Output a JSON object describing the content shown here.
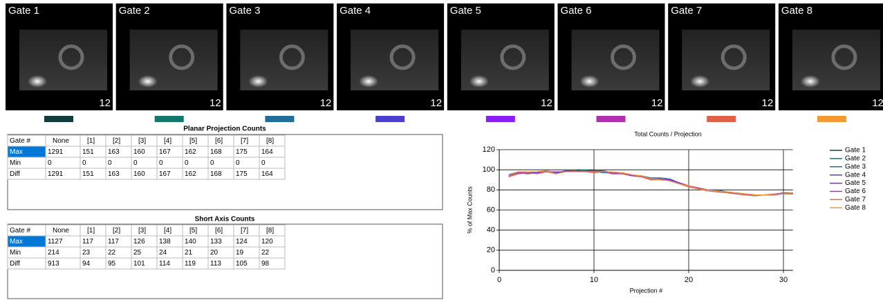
{
  "gates": [
    {
      "label": "Gate 1",
      "number": 12,
      "color": "#0f3d3d"
    },
    {
      "label": "Gate 2",
      "number": 12,
      "color": "#12786c"
    },
    {
      "label": "Gate 3",
      "number": 12,
      "color": "#1f6f98"
    },
    {
      "label": "Gate 4",
      "number": 12,
      "color": "#4b3fcf"
    },
    {
      "label": "Gate 5",
      "number": 12,
      "color": "#8a1ef5"
    },
    {
      "label": "Gate 6",
      "number": 12,
      "color": "#b030b0"
    },
    {
      "label": "Gate 7",
      "number": 12,
      "color": "#e0604a"
    },
    {
      "label": "Gate 8",
      "number": 12,
      "color": "#f59a30"
    }
  ],
  "planar_table": {
    "title": "Planar Projection Counts",
    "header": [
      "Gate #",
      "None",
      "[1]",
      "[2]",
      "[3]",
      "[4]",
      "[5]",
      "[6]",
      "[7]",
      "[8]"
    ],
    "rows": [
      [
        "Max",
        1291,
        151,
        163,
        160,
        167,
        162,
        168,
        175,
        164
      ],
      [
        "Min",
        0,
        0,
        0,
        0,
        0,
        0,
        0,
        0,
        0
      ],
      [
        "Diff",
        1291,
        151,
        163,
        160,
        167,
        162,
        168,
        175,
        164
      ]
    ]
  },
  "short_axis_table": {
    "title": "Short Axis Counts",
    "header": [
      "Gate #",
      "None",
      "[1]",
      "[2]",
      "[3]",
      "[4]",
      "[5]",
      "[6]",
      "[7]",
      "[8]"
    ],
    "rows": [
      [
        "Max",
        1127,
        117,
        117,
        126,
        138,
        140,
        133,
        124,
        120
      ],
      [
        "Min",
        214,
        23,
        22,
        25,
        24,
        21,
        20,
        19,
        22
      ],
      [
        "Diff",
        913,
        94,
        95,
        101,
        114,
        119,
        113,
        105,
        98
      ]
    ]
  },
  "chart_data": {
    "type": "line",
    "title": "Total Counts / Projection",
    "x_label": "Projection #",
    "y_label": "% of Max Counts",
    "x": [
      1,
      2,
      3,
      4,
      5,
      6,
      7,
      8,
      9,
      10,
      11,
      12,
      13,
      14,
      15,
      16,
      17,
      18,
      19,
      20,
      21,
      22,
      23,
      24,
      25,
      26,
      27,
      28,
      29,
      30,
      31
    ],
    "xlim": [
      0,
      31
    ],
    "xticks": [
      0,
      10,
      20,
      30
    ],
    "ylim": [
      0,
      120
    ],
    "yticks": [
      0,
      20,
      40,
      60,
      80,
      100,
      120
    ],
    "grid": true,
    "legend": "right",
    "series": [
      {
        "name": "Gate 1",
        "color": "#0f3d3d",
        "values": [
          94,
          96,
          97,
          98,
          99,
          97,
          98,
          99,
          99,
          99,
          98,
          97,
          96,
          95,
          94,
          91,
          91,
          90,
          87,
          84,
          82,
          80,
          80,
          78,
          77,
          76,
          75,
          75,
          76,
          76,
          77
        ]
      },
      {
        "name": "Gate 2",
        "color": "#12786c",
        "values": [
          93,
          97,
          98,
          97,
          98,
          96,
          98,
          99,
          100,
          99,
          98,
          96,
          97,
          95,
          93,
          91,
          90,
          89,
          86,
          84,
          81,
          80,
          79,
          78,
          77,
          76,
          75,
          75,
          76,
          76,
          76
        ]
      },
      {
        "name": "Gate 3",
        "color": "#1f6f98",
        "values": [
          94,
          96,
          97,
          97,
          98,
          96,
          99,
          99,
          99,
          98,
          97,
          97,
          96,
          94,
          94,
          92,
          92,
          91,
          87,
          84,
          82,
          80,
          80,
          78,
          77,
          76,
          75,
          75,
          75,
          76,
          77
        ]
      },
      {
        "name": "Gate 4",
        "color": "#4b3fcf",
        "values": [
          95,
          98,
          97,
          98,
          99,
          97,
          99,
          99,
          99,
          99,
          99,
          97,
          97,
          95,
          94,
          91,
          91,
          89,
          86,
          83,
          81,
          80,
          79,
          78,
          77,
          76,
          75,
          75,
          76,
          77,
          77
        ]
      },
      {
        "name": "Gate 5",
        "color": "#8a1ef5",
        "values": [
          94,
          97,
          96,
          97,
          98,
          98,
          98,
          99,
          98,
          98,
          98,
          96,
          96,
          94,
          93,
          91,
          90,
          90,
          87,
          84,
          82,
          80,
          79,
          78,
          77,
          76,
          75,
          75,
          76,
          76,
          76
        ]
      },
      {
        "name": "Gate 6",
        "color": "#b030b0",
        "values": [
          94,
          97,
          98,
          98,
          99,
          96,
          98,
          99,
          99,
          98,
          98,
          97,
          97,
          95,
          93,
          90,
          91,
          89,
          86,
          84,
          82,
          80,
          79,
          78,
          76,
          75,
          75,
          75,
          76,
          76,
          77
        ]
      },
      {
        "name": "Gate 7",
        "color": "#e0604a",
        "values": [
          93,
          96,
          97,
          96,
          98,
          96,
          98,
          98,
          98,
          97,
          98,
          97,
          96,
          95,
          93,
          90,
          90,
          89,
          86,
          83,
          81,
          79,
          78,
          77,
          76,
          75,
          74,
          75,
          75,
          76,
          76
        ]
      },
      {
        "name": "Gate 8",
        "color": "#f59a30",
        "values": [
          94,
          98,
          98,
          98,
          99,
          96,
          98,
          98,
          98,
          98,
          98,
          98,
          97,
          95,
          94,
          91,
          90,
          89,
          86,
          84,
          81,
          80,
          79,
          78,
          77,
          76,
          75,
          75,
          76,
          76,
          77
        ]
      }
    ]
  }
}
